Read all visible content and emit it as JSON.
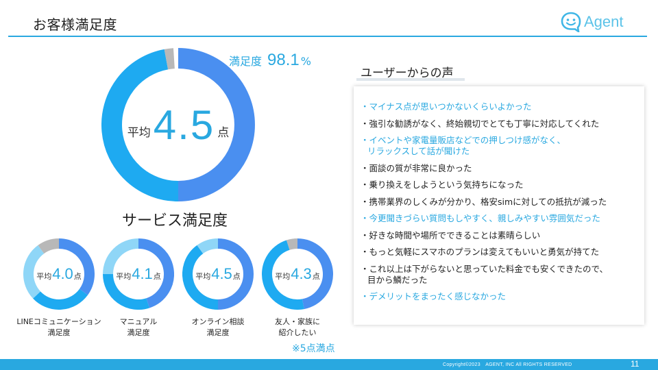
{
  "header": {
    "title": "お客様満足度"
  },
  "logo": {
    "text": "Agent"
  },
  "overall": {
    "prefix": "平均",
    "score": "4.5",
    "unit": "点",
    "satisfaction_label": "満足度",
    "satisfaction_value": "98.1",
    "satisfaction_unit": "%",
    "segments": [
      0.5,
      0.471,
      0.019
    ],
    "colors": [
      "#4a8ff0",
      "#1eaaf1",
      "#b8b8b8"
    ]
  },
  "service_title": "サービス満足度",
  "service_items": [
    {
      "prefix": "平均",
      "score": "4.0",
      "unit": "点",
      "line1": "LINEコミュニケーション",
      "line2": "満足度",
      "segments": [
        0.35,
        0.28,
        0.27,
        0.1
      ]
    },
    {
      "prefix": "平均",
      "score": "4.1",
      "unit": "点",
      "line1": "マニュアル",
      "line2": "満足度",
      "segments": [
        0.45,
        0.3,
        0.25,
        0.0
      ]
    },
    {
      "prefix": "平均",
      "score": "4.5",
      "unit": "点",
      "line1": "オンライン相談",
      "line2": "満足度",
      "segments": [
        0.5,
        0.4,
        0.1,
        0.0
      ]
    },
    {
      "prefix": "平均",
      "score": "4.3",
      "unit": "点",
      "line1": "友人・家族に",
      "line2": "紹介したい",
      "segments": [
        0.47,
        0.48,
        0.0,
        0.05
      ]
    }
  ],
  "small_colors": [
    "#4a8ff0",
    "#1eaaf1",
    "#8fd6f7",
    "#b8b8b8"
  ],
  "note": "※5点満点",
  "voices": {
    "title": "ユーザーからの声",
    "items": [
      {
        "text": "・マイナス点が思いつかないくらいよかった",
        "cont": "",
        "highlight": true
      },
      {
        "text": "・強引な勧誘がなく、終始親切でとても丁寧に対応してくれた",
        "cont": "",
        "highlight": false
      },
      {
        "text": "・イベントや家電量販店などでの押しつけ感がなく、",
        "cont": "リラックスして話が聞けた",
        "highlight": true
      },
      {
        "text": "・面談の質が非常に良かった",
        "cont": "",
        "highlight": false
      },
      {
        "text": "・乗り換えをしようという気持ちになった",
        "cont": "",
        "highlight": false
      },
      {
        "text": "・携帯業界のしくみが分かり、格安simに対しての抵抗が減った",
        "cont": "",
        "highlight": false
      },
      {
        "text": "・今更聞きづらい質問もしやすく、親しみやすい雰囲気だった",
        "cont": "",
        "highlight": true
      },
      {
        "text": "・好きな時間や場所でできることは素晴らしい",
        "cont": "",
        "highlight": false
      },
      {
        "text": "・もっと気軽にスマホのプランは変えてもいいと勇気が持てた",
        "cont": "",
        "highlight": false
      },
      {
        "text": "・これ以上は下がらないと思っていた料金でも安くできたので、",
        "cont": "目から鱗だった",
        "highlight": false
      },
      {
        "text": "・デメリットをまったく感じなかった",
        "cont": "",
        "highlight": true
      }
    ]
  },
  "footer": {
    "copyright": "Copyright©2023　AGENT, INC All RIGHTS RESERVED",
    "page": "11"
  }
}
